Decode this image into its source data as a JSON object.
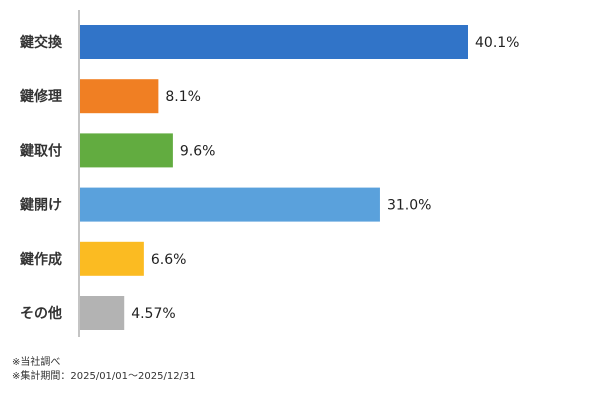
{
  "chart_data": {
    "type": "bar",
    "orientation": "horizontal",
    "categories": [
      "鍵交換",
      "鍵修理",
      "鍵取付",
      "鍵開け",
      "鍵作成",
      "その他"
    ],
    "values": [
      40.1,
      8.1,
      9.6,
      31.0,
      6.6,
      4.57
    ],
    "value_labels": [
      "40.1%",
      "8.1%",
      "9.6%",
      "31.0%",
      "6.6%",
      "4.57%"
    ],
    "colors": [
      "#3174c8",
      "#f07f23",
      "#62ac40",
      "#5aa1dc",
      "#fbbb22",
      "#b3b3b3"
    ],
    "xlim": [
      0,
      40.1
    ],
    "grid": false,
    "legend": "none"
  },
  "notes": [
    "※当社調べ",
    "※集計期間：2025/01/01～2025/12/31"
  ]
}
